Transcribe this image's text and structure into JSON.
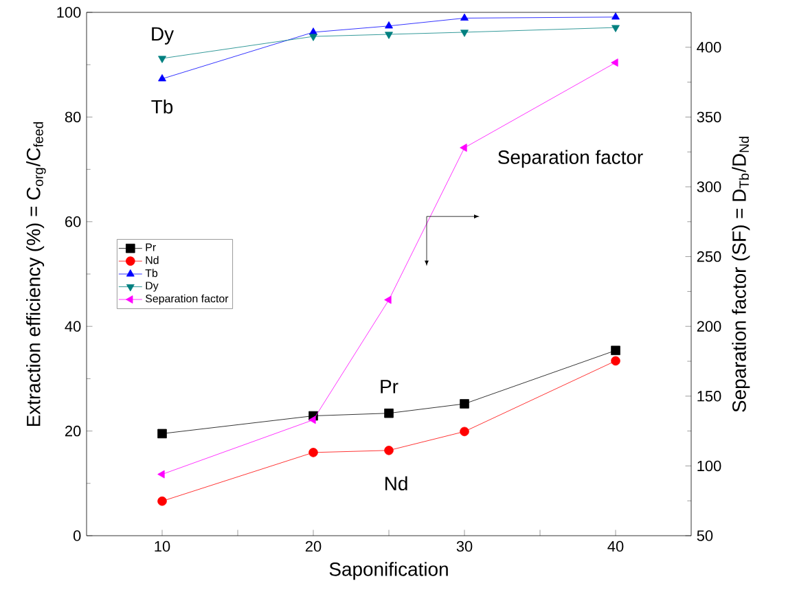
{
  "chart_data": {
    "type": "line",
    "xlabel": "Saponification",
    "ylabel": "Extraction efficiency (%) = C$_{org}$/C$_{feed}$",
    "y2label": "Separation factor (SF) = D$_{Tb}$/D$_{Nd}$",
    "x": [
      10,
      20,
      25,
      30,
      40
    ],
    "xlim": [
      5,
      45
    ],
    "xticks": [
      10,
      {
        "value": 15,
        "label": null
      },
      20,
      {
        "value": 25,
        "label": null
      },
      30,
      {
        "value": 35,
        "label": null
      },
      40
    ],
    "ylim": [
      0,
      100
    ],
    "yticks": [
      0,
      20,
      40,
      60,
      80,
      100
    ],
    "y2lim": [
      50,
      425
    ],
    "y2ticks": [
      50,
      100,
      150,
      200,
      250,
      300,
      350,
      400
    ],
    "legend": "left",
    "grid": false,
    "line_style": "solid",
    "series": [
      {
        "name": "Pr",
        "color": "#000000",
        "marker": "square",
        "values": [
          19.5,
          22.9,
          23.4,
          25.2,
          35.4
        ]
      },
      {
        "name": "Nd",
        "color": "#ff0000",
        "marker": "circle",
        "values": [
          6.6,
          15.9,
          16.3,
          19.9,
          33.4
        ]
      },
      {
        "name": "Tb",
        "color": "#0000ff",
        "marker": "triangle",
        "values": [
          87.3,
          96.2,
          97.4,
          98.9,
          99.1
        ]
      },
      {
        "name": "Dy",
        "color": "#008080",
        "marker": "triangle down",
        "values": [
          91.2,
          95.4,
          95.8,
          96.2,
          97.1
        ]
      },
      {
        "name": "Separation factor",
        "color": "#ff00ff",
        "marker": "triangle left",
        "axis": "y2",
        "values": [
          94,
          133,
          219,
          328,
          389
        ]
      }
    ],
    "annotations": [
      "Dy",
      "Tb",
      "Pr",
      "Nd",
      "Separation factor"
    ]
  }
}
